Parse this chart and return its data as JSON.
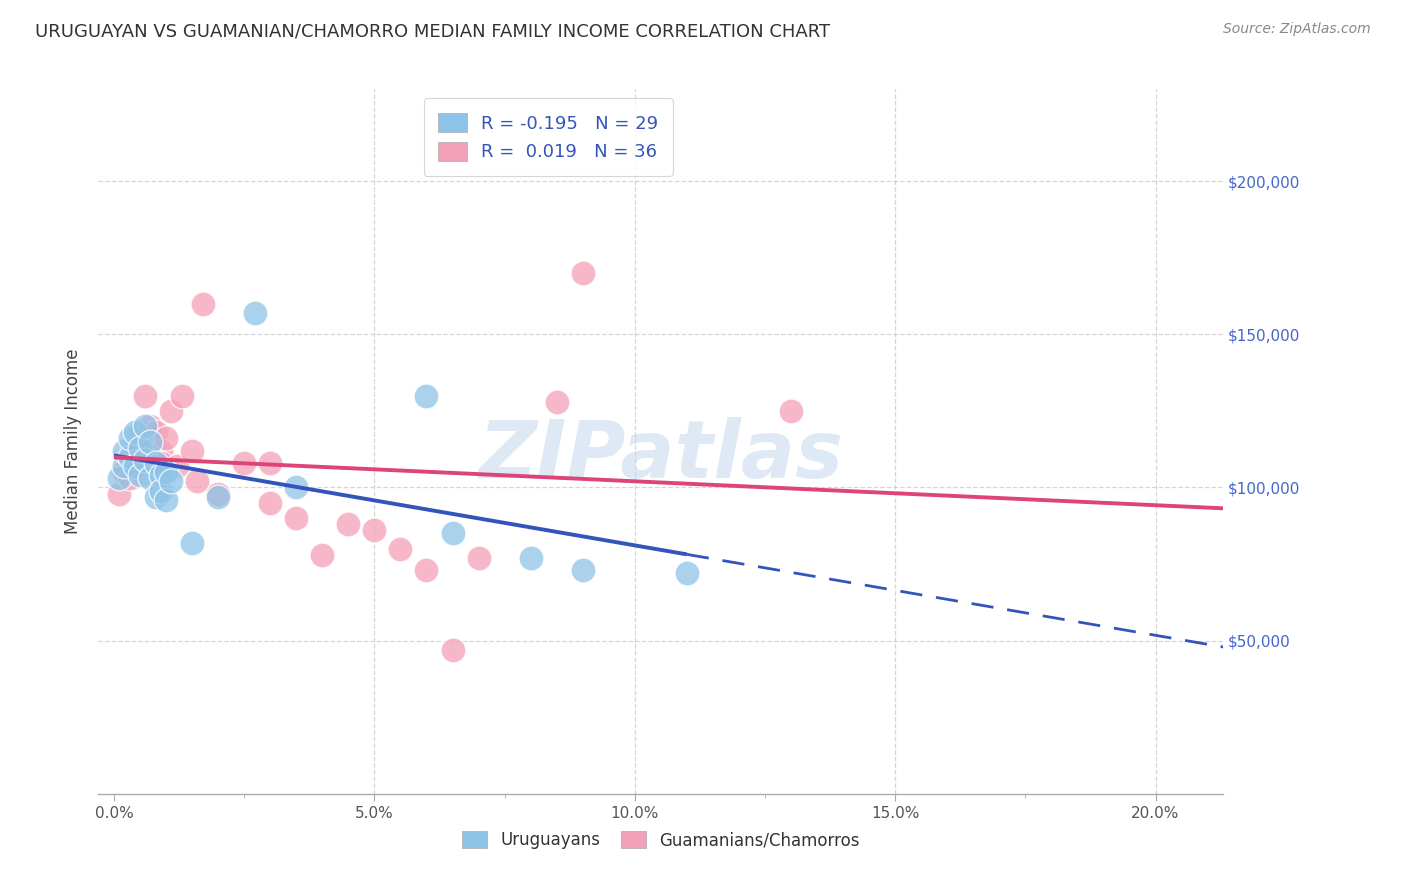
{
  "title": "URUGUAYAN VS GUAMANIAN/CHAMORRO MEDIAN FAMILY INCOME CORRELATION CHART",
  "source": "Source: ZipAtlas.com",
  "xlabel_labels": [
    "0.0%",
    "",
    "5.0%",
    "",
    "10.0%",
    "",
    "15.0%",
    "",
    "20.0%"
  ],
  "xlabel_ticks": [
    0.0,
    0.025,
    0.05,
    0.075,
    0.1,
    0.125,
    0.15,
    0.175,
    0.2
  ],
  "xlabel_major_ticks": [
    0.0,
    0.05,
    0.1,
    0.15,
    0.2
  ],
  "xlabel_major_labels": [
    "0.0%",
    "5.0%",
    "10.0%",
    "15.0%",
    "20.0%"
  ],
  "ylabel": "Median Family Income",
  "ylabel_right_ticks": [
    50000,
    100000,
    150000,
    200000
  ],
  "ylabel_right_labels": [
    "$50,000",
    "$100,000",
    "$150,000",
    "$200,000"
  ],
  "ylim": [
    0,
    230000
  ],
  "xlim": [
    -0.003,
    0.213
  ],
  "watermark": "ZIPatlas",
  "legend_r_uruguayan": "-0.195",
  "legend_n_uruguayan": "29",
  "legend_r_guamanian": "0.019",
  "legend_n_guamanian": "36",
  "uruguayan_color": "#8ec4e8",
  "guamanian_color": "#f4a0b8",
  "uruguayan_line_color": "#3355bb",
  "guamanian_line_color": "#dd4477",
  "uruguayan_scatter": [
    [
      0.001,
      103000
    ],
    [
      0.002,
      107000
    ],
    [
      0.002,
      112000
    ],
    [
      0.003,
      110000
    ],
    [
      0.003,
      116000
    ],
    [
      0.004,
      118000
    ],
    [
      0.004,
      107000
    ],
    [
      0.005,
      113000
    ],
    [
      0.005,
      104000
    ],
    [
      0.006,
      120000
    ],
    [
      0.006,
      109000
    ],
    [
      0.007,
      115000
    ],
    [
      0.007,
      103000
    ],
    [
      0.008,
      108000
    ],
    [
      0.008,
      97000
    ],
    [
      0.009,
      104000
    ],
    [
      0.009,
      99000
    ],
    [
      0.01,
      105000
    ],
    [
      0.01,
      96000
    ],
    [
      0.011,
      102000
    ],
    [
      0.015,
      82000
    ],
    [
      0.02,
      97000
    ],
    [
      0.027,
      157000
    ],
    [
      0.035,
      100000
    ],
    [
      0.06,
      130000
    ],
    [
      0.065,
      85000
    ],
    [
      0.08,
      77000
    ],
    [
      0.09,
      73000
    ],
    [
      0.11,
      72000
    ]
  ],
  "guamanian_scatter": [
    [
      0.001,
      98000
    ],
    [
      0.002,
      105000
    ],
    [
      0.003,
      109000
    ],
    [
      0.003,
      103000
    ],
    [
      0.004,
      111000
    ],
    [
      0.005,
      116000
    ],
    [
      0.005,
      118000
    ],
    [
      0.006,
      110000
    ],
    [
      0.006,
      130000
    ],
    [
      0.007,
      120000
    ],
    [
      0.007,
      115000
    ],
    [
      0.008,
      118000
    ],
    [
      0.009,
      112000
    ],
    [
      0.009,
      108000
    ],
    [
      0.01,
      116000
    ],
    [
      0.011,
      125000
    ],
    [
      0.012,
      107000
    ],
    [
      0.013,
      130000
    ],
    [
      0.015,
      112000
    ],
    [
      0.016,
      102000
    ],
    [
      0.017,
      160000
    ],
    [
      0.02,
      98000
    ],
    [
      0.025,
      108000
    ],
    [
      0.03,
      108000
    ],
    [
      0.03,
      95000
    ],
    [
      0.035,
      90000
    ],
    [
      0.04,
      78000
    ],
    [
      0.045,
      88000
    ],
    [
      0.05,
      86000
    ],
    [
      0.055,
      80000
    ],
    [
      0.06,
      73000
    ],
    [
      0.065,
      47000
    ],
    [
      0.07,
      77000
    ],
    [
      0.085,
      128000
    ],
    [
      0.09,
      170000
    ],
    [
      0.13,
      125000
    ]
  ],
  "background_color": "#ffffff",
  "grid_color": "#cccccc"
}
